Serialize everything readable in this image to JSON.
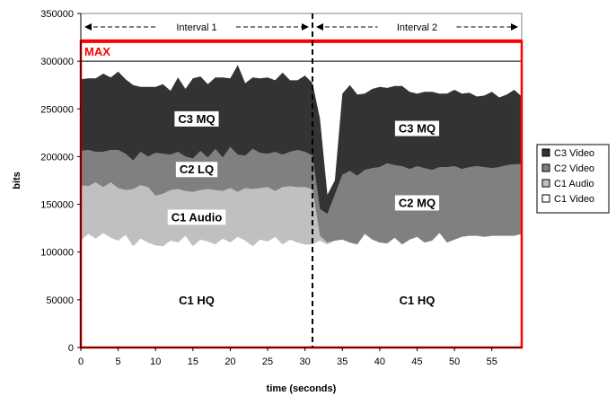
{
  "chart_data": {
    "type": "area",
    "stacked": true,
    "xlabel": "time (seconds)",
    "ylabel": "bits",
    "xlim": [
      0,
      59
    ],
    "ylim": [
      0,
      350000
    ],
    "x_ticks": [
      0,
      5,
      10,
      15,
      20,
      25,
      30,
      35,
      40,
      45,
      50,
      55
    ],
    "y_ticks": [
      0,
      50000,
      100000,
      150000,
      200000,
      250000,
      300000,
      350000
    ],
    "grid": "none",
    "legend_position": "right",
    "max_line": {
      "label": "MAX",
      "value": 321000,
      "color": "#ff0000"
    },
    "max_gridline": 300000,
    "divider_x": 31,
    "interval_labels": [
      "Interval 1",
      "Interval 2"
    ],
    "region_labels": [
      {
        "text": "C3 MQ",
        "x": 15.5,
        "y": 240000
      },
      {
        "text": "C2 LQ",
        "x": 15.5,
        "y": 187000
      },
      {
        "text": "C1 Audio",
        "x": 15.5,
        "y": 137000
      },
      {
        "text": "C1 HQ",
        "x": 15.5,
        "y": 50000
      },
      {
        "text": "C3 MQ",
        "x": 45,
        "y": 230000
      },
      {
        "text": "C2 MQ",
        "x": 45,
        "y": 152000
      },
      {
        "text": "C1 HQ",
        "x": 45,
        "y": 50000
      }
    ],
    "x": [
      0,
      1,
      2,
      3,
      4,
      5,
      6,
      7,
      8,
      9,
      10,
      11,
      12,
      13,
      14,
      15,
      16,
      17,
      18,
      19,
      20,
      21,
      22,
      23,
      24,
      25,
      26,
      27,
      28,
      29,
      30,
      31,
      32,
      33,
      34,
      35,
      36,
      37,
      38,
      39,
      40,
      41,
      42,
      43,
      44,
      45,
      46,
      47,
      48,
      49,
      50,
      51,
      52,
      53,
      54,
      55,
      56,
      57,
      58,
      59
    ],
    "series": [
      {
        "name": "C1 Video",
        "color": "#ffffff",
        "values": [
          112000,
          119000,
          114000,
          120000,
          115000,
          112000,
          118000,
          106000,
          114000,
          110000,
          107000,
          106000,
          112000,
          110000,
          117000,
          106000,
          113000,
          111000,
          108000,
          114000,
          110000,
          116000,
          112000,
          106000,
          113000,
          111000,
          116000,
          108000,
          113000,
          110000,
          108000,
          108000,
          112000,
          108000,
          112000,
          113000,
          110000,
          108000,
          119000,
          113000,
          110000,
          109000,
          115000,
          108000,
          113000,
          116000,
          110000,
          112000,
          120000,
          110000,
          113000,
          116000,
          117000,
          117000,
          116000,
          117000,
          117000,
          117000,
          117000,
          119000
        ]
      },
      {
        "name": "C1 Audio",
        "color": "#c0c0c0",
        "values": [
          58000,
          50000,
          59000,
          48000,
          58000,
          55000,
          47000,
          60000,
          56000,
          58000,
          52000,
          55000,
          53000,
          56000,
          47000,
          57000,
          52000,
          55000,
          57000,
          50000,
          57000,
          47000,
          55000,
          60000,
          54000,
          57000,
          48000,
          60000,
          56000,
          58000,
          60000,
          58000,
          5000,
          2000,
          0,
          0,
          0,
          0,
          0,
          0,
          0,
          0,
          0,
          0,
          0,
          0,
          0,
          0,
          0,
          0,
          0,
          0,
          0,
          0,
          0,
          0,
          0,
          0,
          0,
          0
        ]
      },
      {
        "name": "C2 Video",
        "color": "#808080",
        "values": [
          36000,
          38000,
          32000,
          37000,
          34000,
          40000,
          38000,
          30000,
          35000,
          32000,
          45000,
          42000,
          37000,
          39000,
          36000,
          35000,
          41000,
          33000,
          43000,
          35000,
          43000,
          39000,
          34000,
          42000,
          37000,
          35000,
          41000,
          34000,
          36000,
          39000,
          37000,
          35000,
          28000,
          30000,
          48000,
          68000,
          75000,
          72000,
          67000,
          75000,
          79000,
          84000,
          76000,
          82000,
          74000,
          74000,
          78000,
          74000,
          69000,
          79000,
          77000,
          71000,
          72000,
          73000,
          73000,
          71000,
          72000,
          74000,
          75000,
          73000
        ]
      },
      {
        "name": "C3 Video",
        "color": "#333333",
        "values": [
          75000,
          75000,
          77000,
          82000,
          76000,
          82000,
          78000,
          79000,
          68000,
          73000,
          69000,
          73000,
          67000,
          78000,
          71000,
          84000,
          78000,
          77000,
          75000,
          84000,
          72000,
          94000,
          76000,
          75000,
          78000,
          80000,
          75000,
          86000,
          75000,
          73000,
          80000,
          76000,
          95000,
          20000,
          15000,
          85000,
          90000,
          85000,
          80000,
          83000,
          84000,
          79000,
          83000,
          84000,
          81000,
          76000,
          80000,
          82000,
          77000,
          77000,
          80000,
          79000,
          78000,
          73000,
          75000,
          80000,
          73000,
          74000,
          78000,
          71000
        ]
      }
    ]
  }
}
